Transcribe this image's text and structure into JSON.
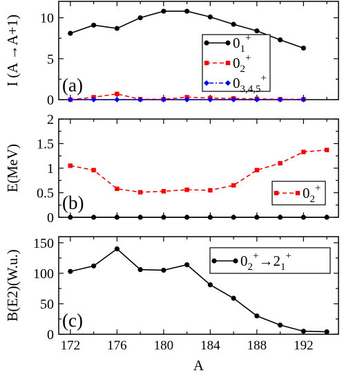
{
  "chart_data": [
    {
      "type": "line",
      "panel_label": "(a)",
      "ylabel": "I (A →A+1)",
      "xlim": [
        171,
        195
      ],
      "ylim": [
        0,
        12
      ],
      "yticks": [
        0,
        5,
        10
      ],
      "grid": false,
      "legend": "right",
      "series": [
        {
          "name_base": "0",
          "name_sub": "1",
          "name_sup": "+",
          "color": "#000000",
          "marker": "circle",
          "dash": "solid",
          "x": [
            172,
            174,
            176,
            178,
            180,
            182,
            184,
            186,
            188,
            190,
            192
          ],
          "y": [
            8.1,
            9.1,
            8.7,
            10.0,
            10.8,
            10.8,
            10.1,
            9.2,
            8.4,
            7.3,
            6.3
          ]
        },
        {
          "name_base": "0",
          "name_sub": "2",
          "name_sup": "+",
          "color": "#ff0000",
          "marker": "square",
          "dash": "dashed",
          "x": [
            172,
            174,
            176,
            178,
            180,
            182,
            184,
            186,
            188,
            190,
            192
          ],
          "y": [
            0.0,
            0.3,
            0.7,
            0.05,
            0.05,
            0.3,
            0.2,
            0.15,
            0.1,
            0.05,
            0.05
          ]
        },
        {
          "name_base": "0",
          "name_sub": "3,4,5",
          "name_sup": "+",
          "color": "#0000ff",
          "marker": "diamond",
          "dash": "dashdot",
          "x": [
            172,
            174,
            176,
            178,
            180,
            182,
            184,
            186,
            188,
            190,
            192
          ],
          "y": [
            0.0,
            0.0,
            0.0,
            0.0,
            0.0,
            0.0,
            0.0,
            0.0,
            0.0,
            0.0,
            0.0
          ]
        }
      ]
    },
    {
      "type": "line",
      "panel_label": "(b)",
      "ylabel": "E(MeV)",
      "xlim": [
        171,
        195
      ],
      "ylim": [
        0,
        2
      ],
      "yticks": [
        0,
        0.5,
        1,
        1.5,
        2
      ],
      "grid": false,
      "legend": "bottom-right",
      "series": [
        {
          "name_base": "",
          "name_sub": "",
          "name_sup": "",
          "color": "#000000",
          "marker": "circle",
          "dash": "solid",
          "x": [
            172,
            174,
            176,
            178,
            180,
            182,
            184,
            186,
            188,
            190,
            192,
            194
          ],
          "y": [
            0,
            0,
            0,
            0,
            0,
            0,
            0,
            0,
            0,
            0,
            0,
            0
          ]
        },
        {
          "name_base": "0",
          "name_sub": "2",
          "name_sup": "+",
          "color": "#ff0000",
          "marker": "square",
          "dash": "dashed",
          "x": [
            172,
            174,
            176,
            178,
            180,
            182,
            184,
            186,
            188,
            190,
            192,
            194
          ],
          "y": [
            1.05,
            0.96,
            0.58,
            0.51,
            0.53,
            0.56,
            0.55,
            0.65,
            0.96,
            1.1,
            1.33,
            1.37
          ]
        }
      ]
    },
    {
      "type": "line",
      "panel_label": "(c)",
      "ylabel": "B(E2)(W.u.)",
      "xlabel": "A",
      "xlim": [
        171,
        195
      ],
      "ylim": [
        0,
        160
      ],
      "yticks": [
        0,
        50,
        100,
        150
      ],
      "xticks": [
        172,
        176,
        180,
        184,
        188,
        192
      ],
      "grid": false,
      "legend": "top-right",
      "series": [
        {
          "name_base": "0",
          "name_sub": "2",
          "name_sup": "+",
          "name_arrow": "→",
          "name_base2": "2",
          "name_sub2": "1",
          "name_sup2": "+",
          "color": "#000000",
          "marker": "circle",
          "dash": "solid",
          "x": [
            172,
            174,
            176,
            178,
            180,
            182,
            184,
            186,
            188,
            190,
            192,
            194
          ],
          "y": [
            103,
            112,
            140,
            106,
            105,
            114,
            81,
            59,
            30,
            15,
            5,
            4
          ]
        }
      ]
    }
  ]
}
